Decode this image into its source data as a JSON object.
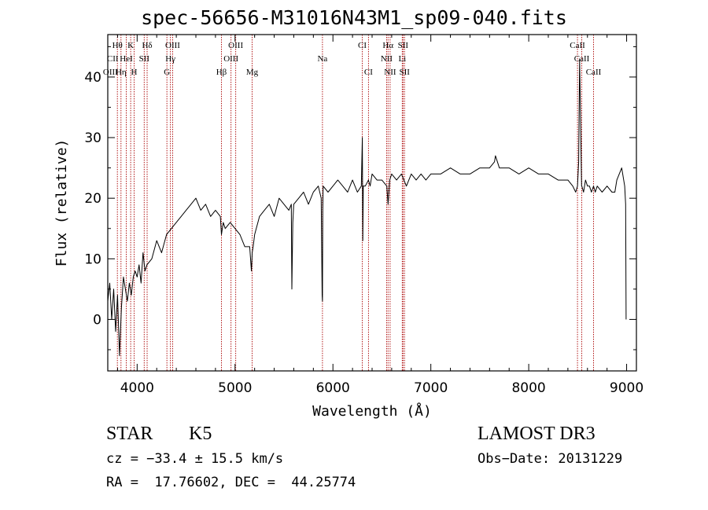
{
  "chart_data": {
    "type": "line",
    "title": "spec-56656-M31016N43M1_sp09-040.fits",
    "xlabel": "Wavelength (Å)",
    "ylabel": "Flux (relative)",
    "xlim": [
      3700,
      9100
    ],
    "ylim": [
      -8.5,
      47
    ],
    "xticks": [
      4000,
      5000,
      6000,
      7000,
      8000,
      9000
    ],
    "yticks": [
      0,
      10,
      20,
      30,
      40
    ],
    "grid": false,
    "series": [
      {
        "name": "spectrum",
        "x": [
          3700,
          3720,
          3740,
          3760,
          3780,
          3800,
          3820,
          3840,
          3860,
          3880,
          3900,
          3920,
          3940,
          3960,
          3980,
          4000,
          4020,
          4040,
          4060,
          4080,
          4100,
          4150,
          4200,
          4250,
          4300,
          4350,
          4400,
          4450,
          4500,
          4550,
          4600,
          4650,
          4700,
          4750,
          4800,
          4850,
          4861,
          4880,
          4900,
          4950,
          5000,
          5050,
          5100,
          5150,
          5167,
          5175,
          5185,
          5200,
          5250,
          5300,
          5350,
          5400,
          5450,
          5500,
          5550,
          5575,
          5580,
          5590,
          5600,
          5650,
          5700,
          5750,
          5800,
          5850,
          5880,
          5890,
          5893,
          5896,
          5900,
          5950,
          6000,
          6050,
          6100,
          6150,
          6200,
          6250,
          6290,
          6300,
          6305,
          6310,
          6330,
          6363,
          6380,
          6400,
          6450,
          6500,
          6550,
          6563,
          6580,
          6600,
          6650,
          6700,
          6750,
          6800,
          6850,
          6900,
          6950,
          7000,
          7100,
          7200,
          7300,
          7400,
          7500,
          7600,
          7650,
          7660,
          7700,
          7800,
          7900,
          8000,
          8100,
          8200,
          8300,
          8400,
          8450,
          8480,
          8498,
          8510,
          8520,
          8540,
          8542,
          8560,
          8580,
          8600,
          8620,
          8640,
          8662,
          8680,
          8700,
          8750,
          8800,
          8850,
          8880,
          8900,
          8950,
          8980,
          8990,
          8995
        ],
        "values": [
          3,
          6,
          0,
          5,
          -2,
          4,
          -6,
          2,
          7,
          5,
          3,
          6,
          4,
          7,
          8,
          7,
          9,
          6,
          11,
          8,
          9,
          10,
          13,
          11,
          14,
          15,
          16,
          17,
          18,
          19,
          20,
          18,
          19,
          17,
          18,
          17,
          14,
          16,
          15,
          16,
          15,
          14,
          12,
          12,
          8,
          11,
          12,
          14,
          17,
          18,
          19,
          17,
          20,
          19,
          18,
          19,
          5,
          16,
          19,
          20,
          21,
          19,
          21,
          22,
          20,
          4,
          3,
          18,
          22,
          21,
          22,
          23,
          22,
          21,
          23,
          21,
          22,
          30,
          13,
          22,
          22,
          23,
          22,
          24,
          23,
          23,
          22,
          19,
          23,
          24,
          23,
          24,
          22,
          24,
          23,
          24,
          23,
          24,
          24,
          25,
          24,
          24,
          25,
          25,
          26,
          27,
          25,
          25,
          24,
          25,
          24,
          24,
          23,
          23,
          22,
          21,
          22,
          26,
          43,
          22,
          22,
          21,
          23,
          22,
          22,
          21,
          22,
          21,
          22,
          21,
          22,
          21,
          21,
          23,
          25,
          22,
          19,
          0
        ]
      }
    ],
    "line_labels": [
      {
        "text": "Hθ",
        "x": 3798,
        "row": 1
      },
      {
        "text": "K",
        "x": 3934,
        "row": 1
      },
      {
        "text": "Hδ",
        "x": 4102,
        "row": 1
      },
      {
        "text": "OIII",
        "x": 4363,
        "row": 1
      },
      {
        "text": "OIII",
        "x": 5007,
        "row": 1
      },
      {
        "text": "CI",
        "x": 6300,
        "row": 1
      },
      {
        "text": "Hα",
        "x": 6563,
        "row": 1
      },
      {
        "text": "SII",
        "x": 6716,
        "row": 1
      },
      {
        "text": "CaII",
        "x": 8498,
        "row": 1
      },
      {
        "text": "CII",
        "x": 3750,
        "row": 2
      },
      {
        "text": "HeI",
        "x": 3889,
        "row": 2
      },
      {
        "text": "SII",
        "x": 4072,
        "row": 2
      },
      {
        "text": "Hγ",
        "x": 4340,
        "row": 2
      },
      {
        "text": "OIII",
        "x": 4959,
        "row": 2
      },
      {
        "text": "Na",
        "x": 5893,
        "row": 2
      },
      {
        "text": "NII",
        "x": 6548,
        "row": 2
      },
      {
        "text": "Li",
        "x": 6708,
        "row": 2
      },
      {
        "text": "CaII",
        "x": 8542,
        "row": 2
      },
      {
        "text": "OIII",
        "x": 3727,
        "row": 3
      },
      {
        "text": "Hη",
        "x": 3835,
        "row": 3
      },
      {
        "text": "H",
        "x": 3969,
        "row": 3
      },
      {
        "text": "G",
        "x": 4304,
        "row": 3
      },
      {
        "text": "Hβ",
        "x": 4861,
        "row": 3
      },
      {
        "text": "Mg",
        "x": 5175,
        "row": 3
      },
      {
        "text": "CI",
        "x": 6363,
        "row": 3
      },
      {
        "text": "NII",
        "x": 6584,
        "row": 3
      },
      {
        "text": "SII",
        "x": 6731,
        "row": 3
      },
      {
        "text": "CaII",
        "x": 8662,
        "row": 3
      }
    ],
    "marker_lines": [
      3798,
      3835,
      3889,
      3934,
      3969,
      4072,
      4102,
      4304,
      4340,
      4363,
      4861,
      4959,
      5007,
      5175,
      5893,
      6300,
      6363,
      6548,
      6563,
      6584,
      6708,
      6716,
      6731,
      8498,
      8542,
      8662
    ]
  },
  "info": {
    "class_label": "STAR",
    "subclass_label": "K5",
    "survey": "LAMOST DR3",
    "cz": "cz = −33.4 ± 15.5 km/s",
    "obs_date": "Obs−Date: 20131229",
    "coords": "RA =  17.76602, DEC =  44.25774"
  },
  "colors": {
    "spectrum": "#000000",
    "marker": "#aa0000",
    "axes": "#000000"
  }
}
